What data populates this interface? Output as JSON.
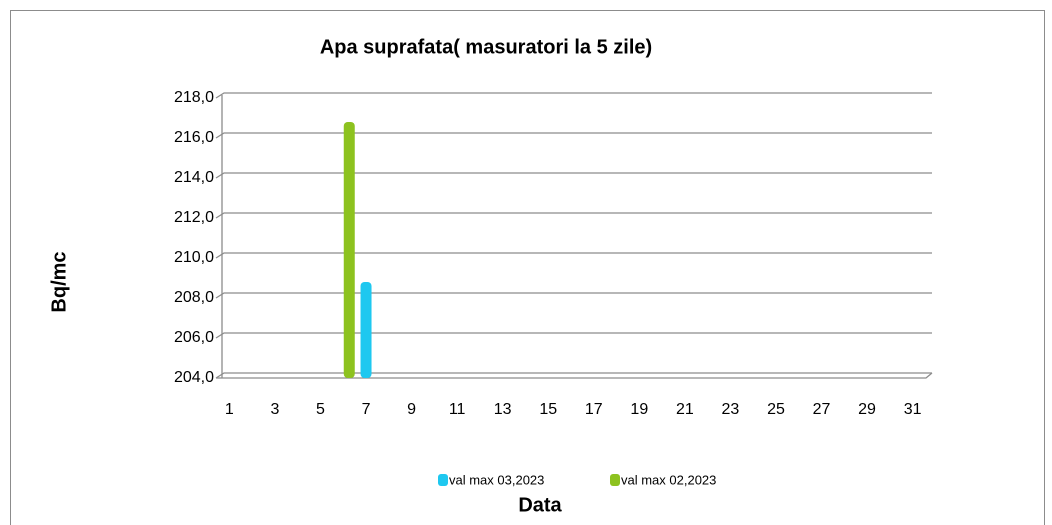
{
  "chart_data": {
    "type": "bar",
    "title": "Apa suprafata( masuratori la 5 zile)",
    "y_label": "Bq/mc",
    "x_label": "Data",
    "categories": [
      1,
      null,
      3,
      null,
      5,
      null,
      7,
      null,
      9,
      null,
      11,
      null,
      13,
      null,
      15,
      null,
      17,
      null,
      19,
      null,
      21,
      null,
      23,
      null,
      25,
      null,
      27,
      null,
      29,
      null,
      31
    ],
    "series": [
      {
        "name": "val max 03,2023",
        "color": "#1ec8f0",
        "values": [
          null,
          null,
          null,
          null,
          null,
          null,
          208.8,
          null,
          null,
          null,
          null,
          null,
          null,
          null,
          null,
          null,
          null,
          null,
          null,
          null,
          null,
          null,
          null,
          null,
          null,
          null,
          null,
          null,
          null,
          null,
          null
        ]
      },
      {
        "name": "val max 02,2023",
        "color": "#8dc21f",
        "values": [
          null,
          null,
          null,
          null,
          null,
          216.8,
          null,
          null,
          null,
          null,
          null,
          null,
          null,
          null,
          null,
          null,
          null,
          null,
          null,
          null,
          null,
          null,
          null,
          null,
          null,
          null,
          null,
          null,
          null,
          null,
          null
        ]
      }
    ],
    "ylim": [
      204,
      218
    ],
    "yticks": [
      {
        "value": 204,
        "label": "204,0"
      },
      {
        "value": 206,
        "label": "206,0"
      },
      {
        "value": 208,
        "label": "208,0"
      },
      {
        "value": 210,
        "label": "210,0"
      },
      {
        "value": 212,
        "label": "212,0"
      },
      {
        "value": 214,
        "label": "214,0"
      },
      {
        "value": 216,
        "label": "216,0"
      },
      {
        "value": 218,
        "label": "218,0"
      }
    ],
    "grid": true,
    "legend": "bottom"
  }
}
